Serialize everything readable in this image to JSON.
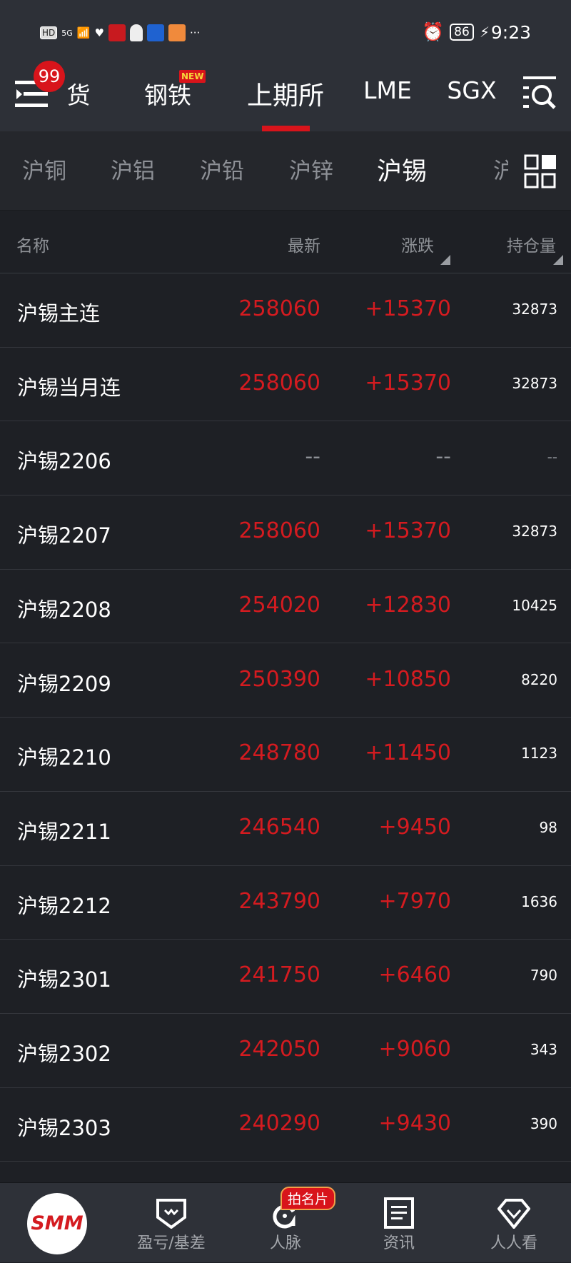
{
  "status_bar": {
    "time": "9:23",
    "battery": "86",
    "network": "5G",
    "hd": "HD",
    "more": "···"
  },
  "top_nav": {
    "badge": "99",
    "new_badge": "NEW",
    "tabs": [
      {
        "label": "货"
      },
      {
        "label": "钢铁"
      },
      {
        "label": "上期所",
        "active": true
      },
      {
        "label": "LME"
      },
      {
        "label": "SGX"
      }
    ]
  },
  "sub_nav": {
    "tabs": [
      {
        "label": "沪铜"
      },
      {
        "label": "沪铝"
      },
      {
        "label": "沪铅"
      },
      {
        "label": "沪锌"
      },
      {
        "label": "沪锡",
        "active": true
      },
      {
        "label": "沪镍"
      }
    ]
  },
  "table": {
    "headers": {
      "name": "名称",
      "latest": "最新",
      "change": "涨跌",
      "open_interest": "持仓量"
    },
    "rows": [
      {
        "name": "沪锡主连",
        "latest": "258060",
        "change": "+15370",
        "oi": "32873"
      },
      {
        "name": "沪锡当月连",
        "latest": "258060",
        "change": "+15370",
        "oi": "32873"
      },
      {
        "name": "沪锡2206",
        "latest": "--",
        "change": "--",
        "oi": "--"
      },
      {
        "name": "沪锡2207",
        "latest": "258060",
        "change": "+15370",
        "oi": "32873"
      },
      {
        "name": "沪锡2208",
        "latest": "254020",
        "change": "+12830",
        "oi": "10425"
      },
      {
        "name": "沪锡2209",
        "latest": "250390",
        "change": "+10850",
        "oi": "8220"
      },
      {
        "name": "沪锡2210",
        "latest": "248780",
        "change": "+11450",
        "oi": "1123"
      },
      {
        "name": "沪锡2211",
        "latest": "246540",
        "change": "+9450",
        "oi": "98"
      },
      {
        "name": "沪锡2212",
        "latest": "243790",
        "change": "+7970",
        "oi": "1636"
      },
      {
        "name": "沪锡2301",
        "latest": "241750",
        "change": "+6460",
        "oi": "790"
      },
      {
        "name": "沪锡2302",
        "latest": "242050",
        "change": "+9060",
        "oi": "343"
      },
      {
        "name": "沪锡2303",
        "latest": "240290",
        "change": "+9430",
        "oi": "390"
      }
    ]
  },
  "bottom_nav": {
    "logo": "SMM",
    "card_badge": "拍名片",
    "items": [
      {
        "label": "盈亏/基差",
        "icon": "shield-w-icon"
      },
      {
        "label": "人脉",
        "icon": "contacts-icon"
      },
      {
        "label": "资讯",
        "icon": "news-icon"
      },
      {
        "label": "人人看",
        "icon": "diamond-icon"
      }
    ]
  },
  "colors": {
    "up": "#d41b20",
    "accent": "#d8141b",
    "bg": "#1e2025"
  }
}
